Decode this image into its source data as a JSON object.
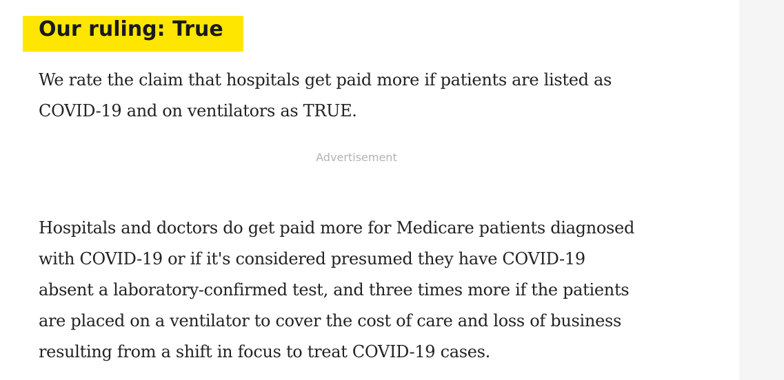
{
  "heading": {
    "text": "Our ruling: True",
    "highlight_color": "#ffe600"
  },
  "paragraphs": [
    {
      "lines": [
        "We rate the claim that hospitals get paid more if patients are listed as",
        "COVID-19 and on ventilators as TRUE."
      ]
    },
    {
      "lines": [
        "Hospitals and doctors do get paid more for Medicare patients diagnosed",
        "with COVID-19 or if it's considered presumed they have COVID-19",
        "absent a laboratory-confirmed test, and three times more if the patients",
        "are placed on a ventilator to cover the cost of care and loss of business",
        "resulting from a shift in focus to treat COVID-19 cases."
      ]
    }
  ],
  "advertisement": {
    "label": "Advertisement"
  }
}
